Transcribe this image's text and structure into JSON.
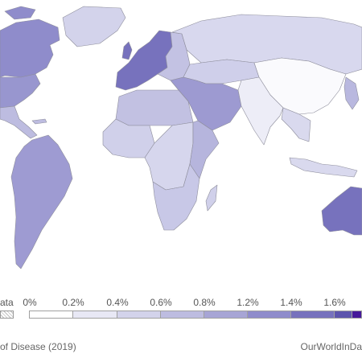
{
  "legend": {
    "no_data_label": "ata",
    "tick_labels": [
      "0%",
      "0.2%",
      "0.4%",
      "0.6%",
      "0.8%",
      "1.2%",
      "1.4%",
      "1.6%"
    ],
    "bin_colors": [
      "#ffffff",
      "#e8e8f5",
      "#d3d3eb",
      "#bdbce0",
      "#a7a5d5",
      "#8f8ccb",
      "#7772bd",
      "#5d55ad",
      "#45199a"
    ]
  },
  "footer": {
    "source": "of Disease (2019)",
    "brand": "OurWorldInDa"
  },
  "map": {
    "colors": {
      "ocean": "#ffffff",
      "border": "#8e8e9c",
      "greenland": "#d3d3eb",
      "canada": "#8f8ccb",
      "usa": "#9896cf",
      "mexico": "#bdbce0",
      "south_america": "#9e9bd2",
      "europe_west": "#7772bd",
      "europe_east": "#c3c2e3",
      "russia": "#d8d8ee",
      "north_africa": "#c2c1e2",
      "west_africa": "#d0d0ea",
      "central_africa": "#d6d6ed",
      "east_africa": "#b6b5dd",
      "southern_africa": "#c8c8e7",
      "middle_east": "#9d9ad1",
      "central_asia": "#cfcfea",
      "china": "#fafafd",
      "south_asia": "#ededf7",
      "southeast_asia": "#d9d9ee",
      "japan": "#b9b8df",
      "australia": "#7772bd",
      "madagascar": "#d0d0ea"
    }
  }
}
